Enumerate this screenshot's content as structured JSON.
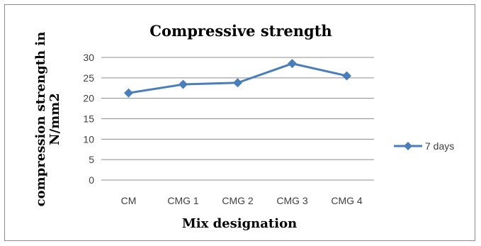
{
  "chart_data": {
    "type": "line",
    "title": "Compressive  strength",
    "xlabel": "Mix designation",
    "ylabel": "compression strength in N/mm2",
    "ylabel_lines": [
      "compression strength in",
      "N/mm2"
    ],
    "categories": [
      "CM",
      "CMG 1",
      "CMG 2",
      "CMG 3",
      "CMG 4"
    ],
    "series": [
      {
        "name": "7 days",
        "values": [
          21.3,
          23.4,
          23.8,
          28.5,
          25.5
        ],
        "color": "#4a7ebb",
        "marker": "diamond"
      }
    ],
    "ylim": [
      0,
      30
    ],
    "yticks": [
      0,
      5,
      10,
      15,
      20,
      25,
      30
    ],
    "grid": "horizontal",
    "legend": "right"
  }
}
